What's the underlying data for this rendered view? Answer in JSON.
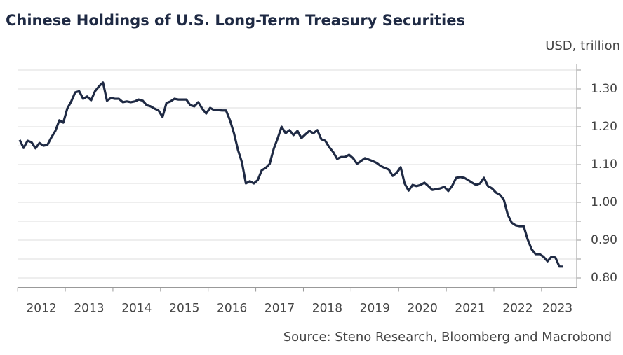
{
  "chart_data": {
    "type": "line",
    "title": "Chinese Holdings of U.S. Long-Term Treasury Securities",
    "y_axis_label": "USD, trillion",
    "source": "Source: Steno Research, Bloomberg and Macrobond",
    "categories": [
      null,
      null,
      null,
      null,
      null,
      null,
      "2012",
      null,
      null,
      null,
      null,
      null,
      null,
      null,
      null,
      null,
      null,
      null,
      "2013",
      null,
      null,
      null,
      null,
      null,
      null,
      null,
      null,
      null,
      null,
      null,
      "2014",
      null,
      null,
      null,
      null,
      null,
      null,
      null,
      null,
      null,
      null,
      null,
      "2015",
      null,
      null,
      null,
      null,
      null,
      null,
      null,
      null,
      null,
      null,
      null,
      "2016",
      null,
      null,
      null,
      null,
      null,
      null,
      null,
      null,
      null,
      null,
      null,
      "2017",
      null,
      null,
      null,
      null,
      null,
      null,
      null,
      null,
      null,
      null,
      null,
      "2018",
      null,
      null,
      null,
      null,
      null,
      null,
      null,
      null,
      null,
      null,
      null,
      "2019",
      null,
      null,
      null,
      null,
      null,
      null,
      null,
      null,
      null,
      null,
      null,
      "2020",
      null,
      null,
      null,
      null,
      null,
      null,
      null,
      null,
      null,
      null,
      null,
      "2021",
      null,
      null,
      null,
      null,
      null,
      null,
      null,
      null,
      null,
      null,
      null,
      "2022",
      null,
      null,
      null,
      null,
      null,
      null,
      null,
      null,
      null,
      "2023",
      null
    ],
    "series": [
      {
        "name": "Chinese holdings",
        "color": "#1f2a44",
        "values": [
          1.165,
          1.144,
          1.163,
          1.159,
          1.143,
          1.157,
          1.15,
          1.152,
          1.172,
          1.189,
          1.217,
          1.211,
          1.248,
          1.267,
          1.291,
          1.294,
          1.274,
          1.28,
          1.27,
          1.294,
          1.307,
          1.317,
          1.269,
          1.276,
          1.274,
          1.274,
          1.265,
          1.267,
          1.265,
          1.267,
          1.272,
          1.269,
          1.257,
          1.254,
          1.248,
          1.243,
          1.226,
          1.263,
          1.267,
          1.274,
          1.272,
          1.272,
          1.272,
          1.257,
          1.254,
          1.265,
          1.248,
          1.235,
          1.25,
          1.244,
          1.244,
          1.243,
          1.243,
          1.217,
          1.183,
          1.139,
          1.106,
          1.05,
          1.056,
          1.05,
          1.059,
          1.085,
          1.091,
          1.102,
          1.141,
          1.169,
          1.2,
          1.183,
          1.191,
          1.178,
          1.189,
          1.17,
          1.18,
          1.189,
          1.183,
          1.191,
          1.167,
          1.163,
          1.146,
          1.133,
          1.115,
          1.12,
          1.12,
          1.126,
          1.117,
          1.102,
          1.109,
          1.117,
          1.113,
          1.109,
          1.104,
          1.096,
          1.091,
          1.087,
          1.07,
          1.078,
          1.093,
          1.05,
          1.031,
          1.046,
          1.043,
          1.046,
          1.052,
          1.043,
          1.033,
          1.035,
          1.037,
          1.041,
          1.03,
          1.044,
          1.065,
          1.067,
          1.065,
          1.059,
          1.052,
          1.046,
          1.05,
          1.065,
          1.043,
          1.037,
          1.026,
          1.02,
          1.007,
          0.967,
          0.946,
          0.939,
          0.937,
          0.937,
          0.902,
          0.876,
          0.863,
          0.863,
          0.856,
          0.844,
          0.856,
          0.854,
          0.83,
          0.83
        ]
      }
    ],
    "ylim": [
      0.775,
      1.35
    ],
    "yticks": [
      {
        "value": 0.8,
        "label": "0.80"
      },
      {
        "value": 0.9,
        "label": "0.90"
      },
      {
        "value": 1.0,
        "label": "1.00"
      },
      {
        "value": 1.1,
        "label": "1.10"
      },
      {
        "value": 1.2,
        "label": "1.20"
      },
      {
        "value": 1.3,
        "label": "1.30"
      }
    ],
    "y_minor_ticks": [
      0.85,
      0.95,
      1.05,
      1.15,
      1.25,
      1.35
    ],
    "grid": true
  }
}
